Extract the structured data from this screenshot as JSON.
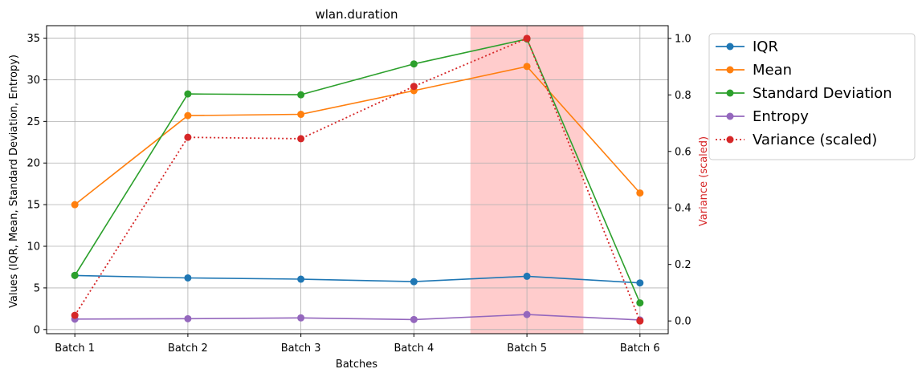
{
  "chart_data": {
    "type": "line",
    "title": "wlan.duration",
    "xlabel": "Batches",
    "ylabel": "Values (IQR, Mean, Standard Deviation, Entropy)",
    "y2label": "Variance (scaled)",
    "categories": [
      "Batch 1",
      "Batch 2",
      "Batch 3",
      "Batch 4",
      "Batch 5",
      "Batch 6"
    ],
    "ylim": [
      -0.5,
      36.5
    ],
    "y2lim": [
      -0.045,
      1.045
    ],
    "yticks": [
      0,
      5,
      10,
      15,
      20,
      25,
      30,
      35
    ],
    "y2ticks": [
      0.0,
      0.2,
      0.4,
      0.6,
      0.8,
      1.0
    ],
    "ytick_labels": [
      "0",
      "5",
      "10",
      "15",
      "20",
      "25",
      "30",
      "35"
    ],
    "y2tick_labels": [
      "0.0",
      "0.2",
      "0.4",
      "0.6",
      "0.8",
      "1.0"
    ],
    "grid": true,
    "legend_position": "outside-top-right",
    "highlight": {
      "from": 3.5,
      "to": 4.5,
      "color": "#ffcccc"
    },
    "colors": {
      "iqr": "#1f77b4",
      "mean": "#ff7f0e",
      "std": "#2ca02c",
      "entropy": "#9467bd",
      "variance": "#d62728",
      "y2label": "#d62728"
    },
    "series": [
      {
        "name": "IQR",
        "key": "iqr",
        "axis": "left",
        "style": "solid",
        "values": [
          6.5,
          6.2,
          6.05,
          5.75,
          6.4,
          5.6
        ]
      },
      {
        "name": "Mean",
        "key": "mean",
        "axis": "left",
        "style": "solid",
        "values": [
          15.0,
          25.7,
          25.85,
          28.7,
          31.6,
          16.4
        ]
      },
      {
        "name": "Standard Deviation",
        "key": "std",
        "axis": "left",
        "style": "solid",
        "values": [
          6.5,
          28.3,
          28.2,
          31.9,
          34.9,
          3.2
        ]
      },
      {
        "name": "Entropy",
        "key": "entropy",
        "axis": "left",
        "style": "solid",
        "values": [
          1.25,
          1.3,
          1.4,
          1.2,
          1.8,
          1.15
        ]
      },
      {
        "name": "Variance (scaled)",
        "key": "variance",
        "axis": "right",
        "style": "dotted",
        "values": [
          0.02,
          0.65,
          0.645,
          0.83,
          1.0,
          0.0
        ]
      }
    ]
  }
}
